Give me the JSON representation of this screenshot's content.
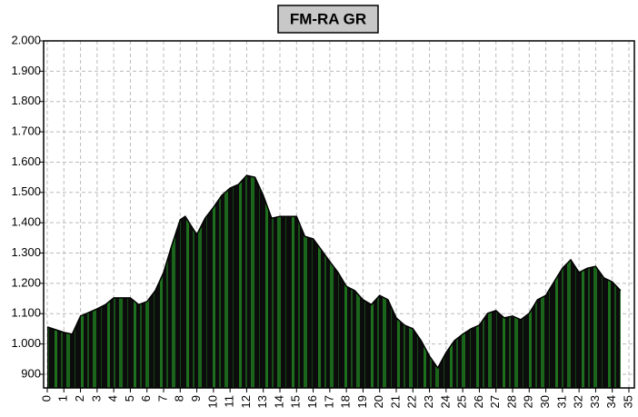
{
  "chart_data": {
    "type": "area",
    "title": "FM-RA GR",
    "color": "#1f7a1f",
    "grid": true,
    "x": [
      0,
      1,
      1.5,
      2,
      3,
      3.5,
      4,
      5,
      5.5,
      6,
      6.5,
      7,
      7.5,
      8,
      8.3,
      8.7,
      9,
      9.5,
      10,
      10.5,
      11,
      11.5,
      12,
      12.5,
      13,
      13.5,
      14,
      15,
      15.5,
      16,
      16.5,
      17,
      17.5,
      18,
      18.5,
      19,
      19.5,
      20,
      20.5,
      21,
      21.5,
      22,
      22.5,
      23,
      23.5,
      24,
      24.5,
      25,
      25.5,
      26,
      26.5,
      27,
      27.5,
      28,
      28.5,
      29,
      29.5,
      30,
      30.5,
      31,
      31.5,
      32,
      32.5,
      33,
      33.5,
      34,
      34.5
    ],
    "values": [
      1056,
      1038,
      1032,
      1092,
      1116,
      1130,
      1152,
      1152,
      1130,
      1140,
      1176,
      1236,
      1326,
      1410,
      1421,
      1386,
      1361,
      1415,
      1451,
      1490,
      1514,
      1526,
      1556,
      1550,
      1490,
      1415,
      1421,
      1421,
      1355,
      1347,
      1310,
      1272,
      1236,
      1190,
      1176,
      1146,
      1130,
      1160,
      1146,
      1086,
      1062,
      1050,
      1011,
      960,
      921,
      972,
      1011,
      1032,
      1050,
      1062,
      1101,
      1110,
      1086,
      1092,
      1080,
      1101,
      1146,
      1160,
      1205,
      1250,
      1278,
      1236,
      1250,
      1256,
      1218,
      1205,
      1176
    ],
    "xlim": [
      0,
      35
    ],
    "xticks": [
      0,
      1,
      2,
      3,
      4,
      5,
      6,
      7,
      8,
      9,
      10,
      11,
      12,
      13,
      14,
      15,
      16,
      17,
      18,
      19,
      20,
      21,
      22,
      23,
      24,
      25,
      26,
      27,
      28,
      29,
      30,
      31,
      32,
      33,
      34,
      35
    ],
    "ylim": [
      855,
      2000
    ],
    "yticks": [
      900,
      {
        "value": 1000,
        "label": "1.000"
      },
      {
        "value": 1100,
        "label": "1.100"
      },
      {
        "value": 1200,
        "label": "1.200"
      },
      {
        "value": 1300,
        "label": "1.300"
      },
      {
        "value": 1400,
        "label": "1.400"
      },
      {
        "value": 1500,
        "label": "1.500"
      },
      {
        "value": 1600,
        "label": "1.600"
      },
      {
        "value": 1700,
        "label": "1.700"
      },
      {
        "value": 1800,
        "label": "1.800"
      },
      {
        "value": 1900,
        "label": "1.900"
      },
      {
        "value": 2000,
        "label": "2.000"
      }
    ]
  }
}
